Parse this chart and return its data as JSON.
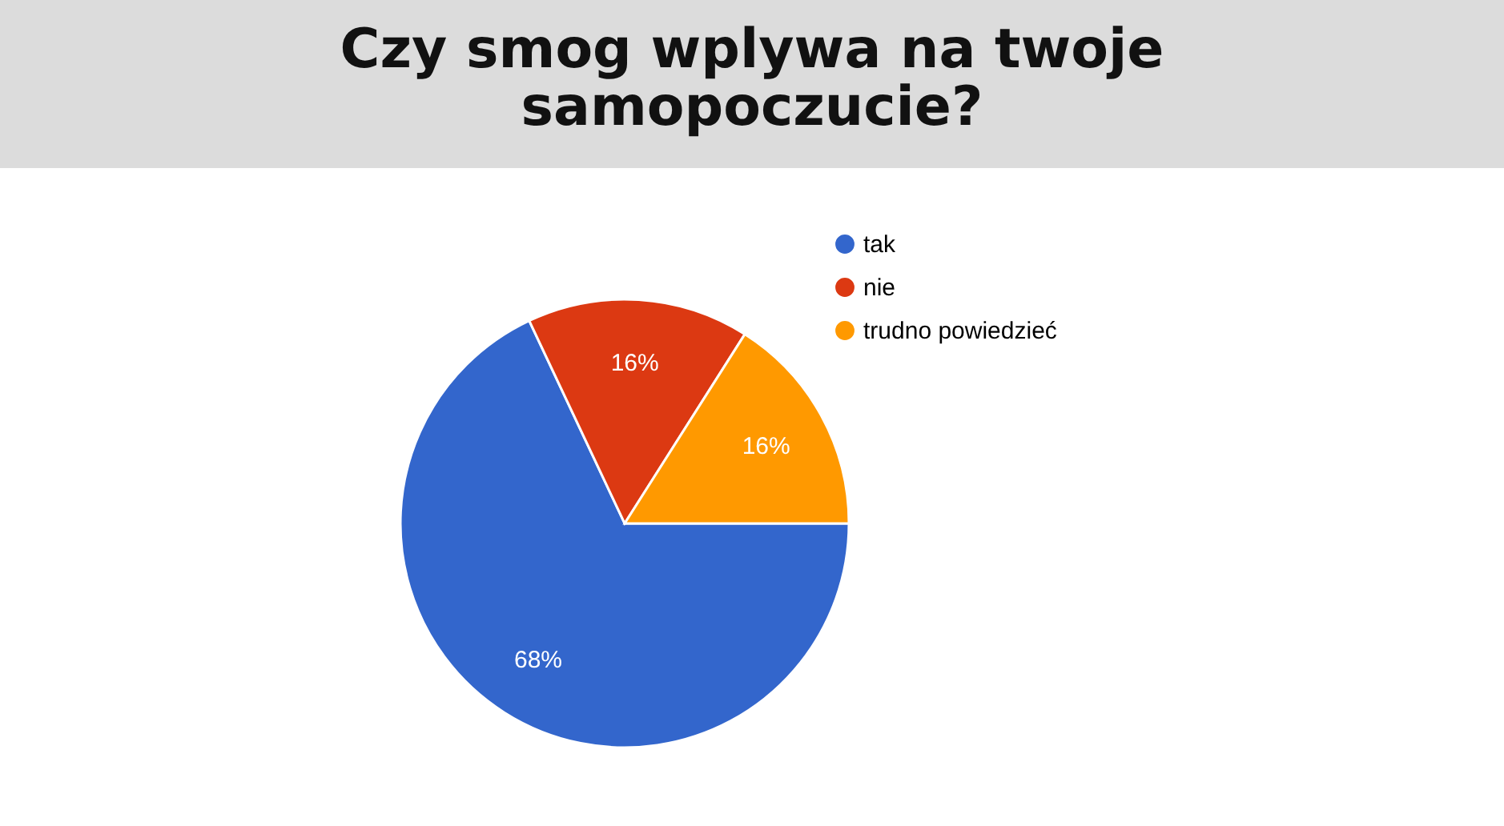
{
  "chart_data": {
    "type": "pie",
    "title": "Czy smog wplywa na twoje samopoczucie?",
    "categories": [
      "tak",
      "nie",
      "trudno powiedzieć"
    ],
    "values": [
      68,
      16,
      16
    ],
    "colors": [
      "#3366cc",
      "#dc3912",
      "#ff9900"
    ],
    "value_labels": [
      "68%",
      "16%",
      "16%"
    ],
    "legend": "top right"
  }
}
